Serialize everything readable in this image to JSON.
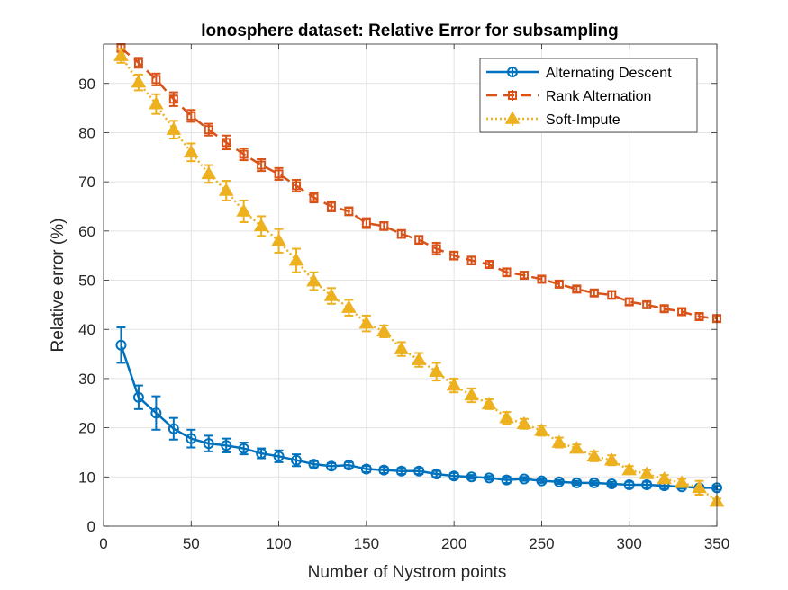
{
  "chart_data": {
    "type": "line",
    "title": "Ionosphere dataset: Relative Error for subsampling",
    "xlabel": "Number of Nystrom points",
    "ylabel": "Relative error (%)",
    "xlim": [
      0,
      350
    ],
    "ylim": [
      0,
      98
    ],
    "xticks": [
      0,
      50,
      100,
      150,
      200,
      250,
      300,
      350
    ],
    "yticks": [
      0,
      10,
      20,
      30,
      40,
      50,
      60,
      70,
      80,
      90
    ],
    "grid": true,
    "legend_position": "top-right",
    "x": [
      10,
      20,
      30,
      40,
      50,
      60,
      70,
      80,
      90,
      100,
      110,
      120,
      130,
      140,
      150,
      160,
      170,
      180,
      190,
      200,
      210,
      220,
      230,
      240,
      250,
      260,
      270,
      280,
      290,
      300,
      310,
      320,
      330,
      340,
      350
    ],
    "series": [
      {
        "name": "Alternating Descent",
        "color": "#0072BD",
        "marker": "circle",
        "line_style": "solid",
        "values": [
          36.8,
          26.2,
          23.0,
          19.8,
          17.8,
          16.8,
          16.4,
          15.8,
          14.8,
          14.2,
          13.4,
          12.6,
          12.2,
          12.4,
          11.6,
          11.4,
          11.2,
          11.2,
          10.6,
          10.2,
          10.0,
          9.8,
          9.4,
          9.6,
          9.2,
          9.0,
          8.8,
          8.8,
          8.6,
          8.4,
          8.4,
          8.2,
          8.0,
          7.8,
          7.8
        ],
        "errors": [
          3.6,
          2.4,
          3.4,
          2.2,
          1.8,
          1.6,
          1.4,
          1.2,
          1.0,
          1.2,
          1.2,
          0.6,
          0.6,
          0.6,
          0.6,
          0.6,
          0.6,
          0.6,
          0.6,
          0.6,
          0.4,
          0.4,
          0.6,
          0.4,
          0.4,
          0.4,
          0.4,
          0.4,
          0.4,
          0.6,
          0.6,
          0.6,
          0.4,
          0.4,
          0.4
        ]
      },
      {
        "name": "Rank Alternation",
        "color": "#D95319",
        "marker": "square",
        "line_style": "dashed",
        "values": [
          97.2,
          94.2,
          90.8,
          86.8,
          83.4,
          80.6,
          78.0,
          75.6,
          73.4,
          71.6,
          69.2,
          66.8,
          65.0,
          64.0,
          61.6,
          61.0,
          59.4,
          58.2,
          56.4,
          55.0,
          54.0,
          53.2,
          51.6,
          51.0,
          50.2,
          49.2,
          48.2,
          47.4,
          47.0,
          45.6,
          45.0,
          44.2,
          43.6,
          42.6,
          42.2
        ],
        "errors": [
          0.8,
          1.0,
          1.2,
          1.4,
          1.2,
          1.2,
          1.4,
          1.2,
          1.2,
          1.2,
          1.2,
          1.0,
          1.0,
          0.8,
          1.0,
          0.8,
          0.8,
          0.8,
          1.2,
          0.8,
          0.8,
          0.6,
          0.8,
          0.6,
          0.6,
          0.6,
          0.6,
          0.6,
          0.8,
          0.6,
          0.6,
          0.6,
          0.6,
          0.6,
          0.6
        ]
      },
      {
        "name": "Soft-Impute",
        "color": "#EDB120",
        "marker": "triangle",
        "line_style": "dotted",
        "values": [
          95.6,
          90.2,
          85.8,
          80.6,
          76.0,
          71.6,
          68.2,
          64.0,
          61.0,
          58.0,
          54.0,
          49.8,
          46.8,
          44.4,
          41.2,
          39.6,
          36.0,
          33.8,
          31.4,
          28.6,
          26.6,
          24.8,
          22.0,
          20.8,
          19.4,
          17.0,
          15.8,
          14.2,
          13.4,
          11.4,
          10.6,
          9.6,
          8.8,
          7.8,
          5.0
        ],
        "errors": [
          1.4,
          1.6,
          2.0,
          1.8,
          1.8,
          1.8,
          2.0,
          2.2,
          2.0,
          2.4,
          2.4,
          1.8,
          1.6,
          1.6,
          1.6,
          1.2,
          1.4,
          1.4,
          1.8,
          1.4,
          1.4,
          1.0,
          1.2,
          1.0,
          1.0,
          1.0,
          0.8,
          1.0,
          1.0,
          0.8,
          0.8,
          0.8,
          0.8,
          1.4,
          0.6
        ]
      }
    ]
  }
}
